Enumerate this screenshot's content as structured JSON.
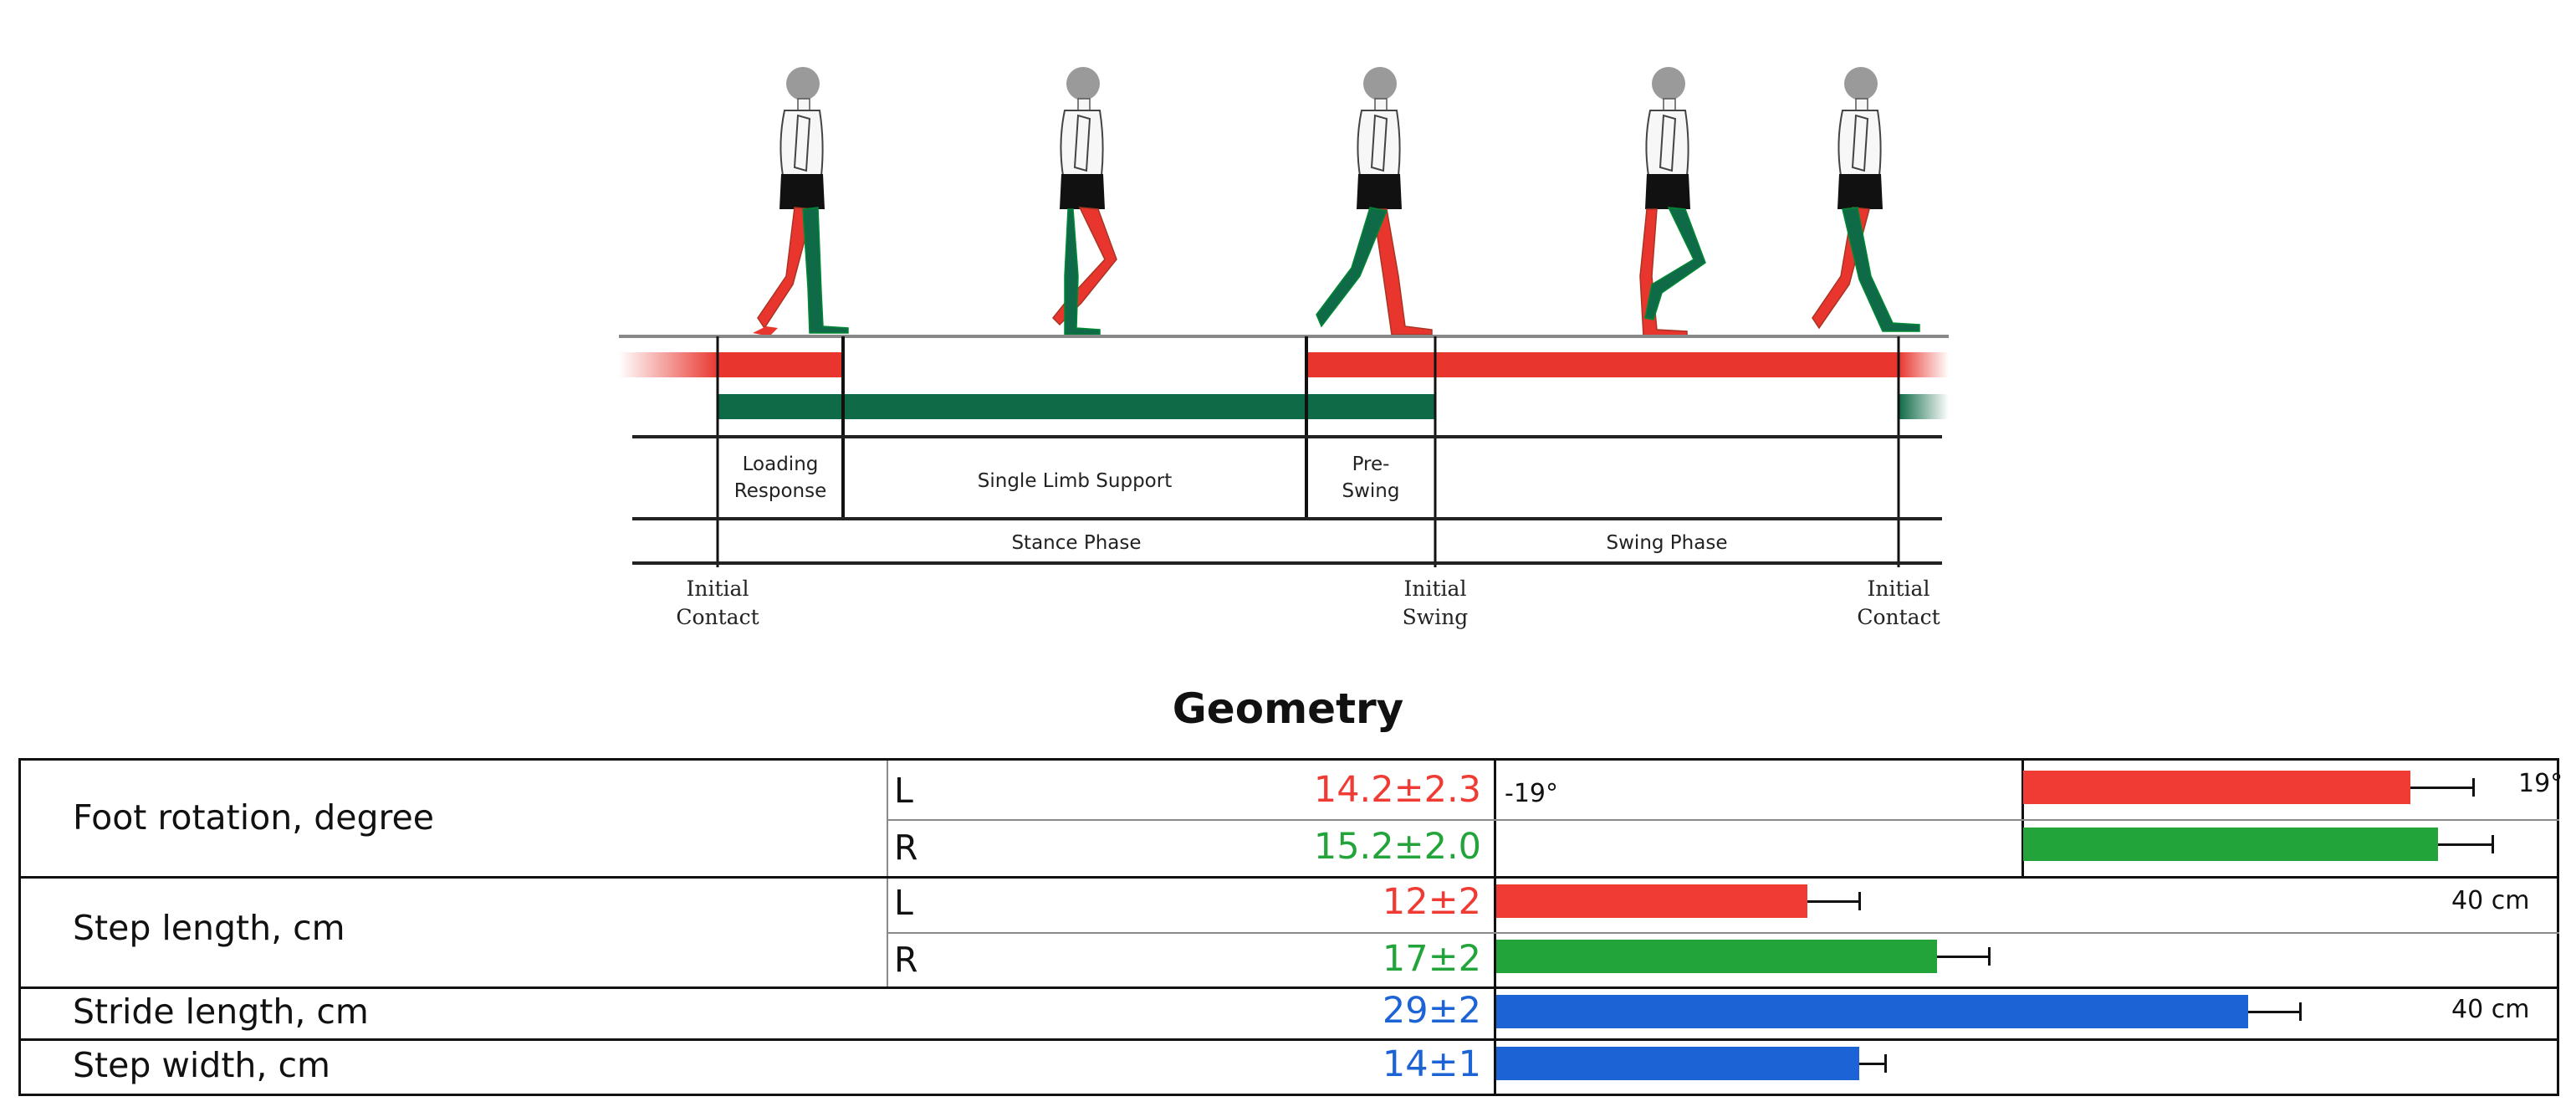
{
  "gait_diagram": {
    "phases": {
      "loading_response": [
        "Loading",
        "Response"
      ],
      "single_limb_support": "Single Limb Support",
      "pre_swing": [
        "Pre-",
        "Swing"
      ],
      "stance_phase": "Stance Phase",
      "swing_phase": "Swing Phase"
    },
    "events": {
      "initial_contact_left": [
        "Initial",
        "Contact"
      ],
      "initial_swing": [
        "Initial",
        "Swing"
      ],
      "initial_contact_right": [
        "Initial",
        "Contact"
      ]
    },
    "colors": {
      "left_limb": "#e8362e",
      "right_limb": "#0e6a47",
      "body": "#f7f7f7",
      "shorts": "#111111",
      "head": "#9a9a9a"
    }
  },
  "geometry": {
    "title": "Geometry",
    "rows": [
      {
        "label": "Foot rotation, degree",
        "sides": [
          {
            "side": "L",
            "value": "14.2±2.3",
            "mean": 14.2,
            "sd": 2.3,
            "color": "#f03a34"
          },
          {
            "side": "R",
            "value": "15.2±2.0",
            "mean": 15.2,
            "sd": 2.0,
            "color": "#22a43a"
          }
        ],
        "axis_min_label": "-19°",
        "axis_max_label": "19°",
        "axis_range": [
          -19,
          19
        ]
      },
      {
        "label": "Step length, cm",
        "sides": [
          {
            "side": "L",
            "value": "12±2",
            "mean": 12,
            "sd": 2,
            "color": "#f03a34"
          },
          {
            "side": "R",
            "value": "17±2",
            "mean": 17,
            "sd": 2,
            "color": "#22a43a"
          }
        ],
        "axis_max_label": "40 cm",
        "axis_range": [
          0,
          40
        ]
      },
      {
        "label": "Stride length, cm",
        "value": "29±2",
        "mean": 29,
        "sd": 2,
        "color": "#1c63d6",
        "axis_max_label": "40 cm",
        "axis_range": [
          0,
          40
        ]
      },
      {
        "label": "Step width, cm",
        "value": "14±1",
        "mean": 14,
        "sd": 1,
        "color": "#1c63d6",
        "axis_range": [
          0,
          40
        ]
      }
    ]
  }
}
